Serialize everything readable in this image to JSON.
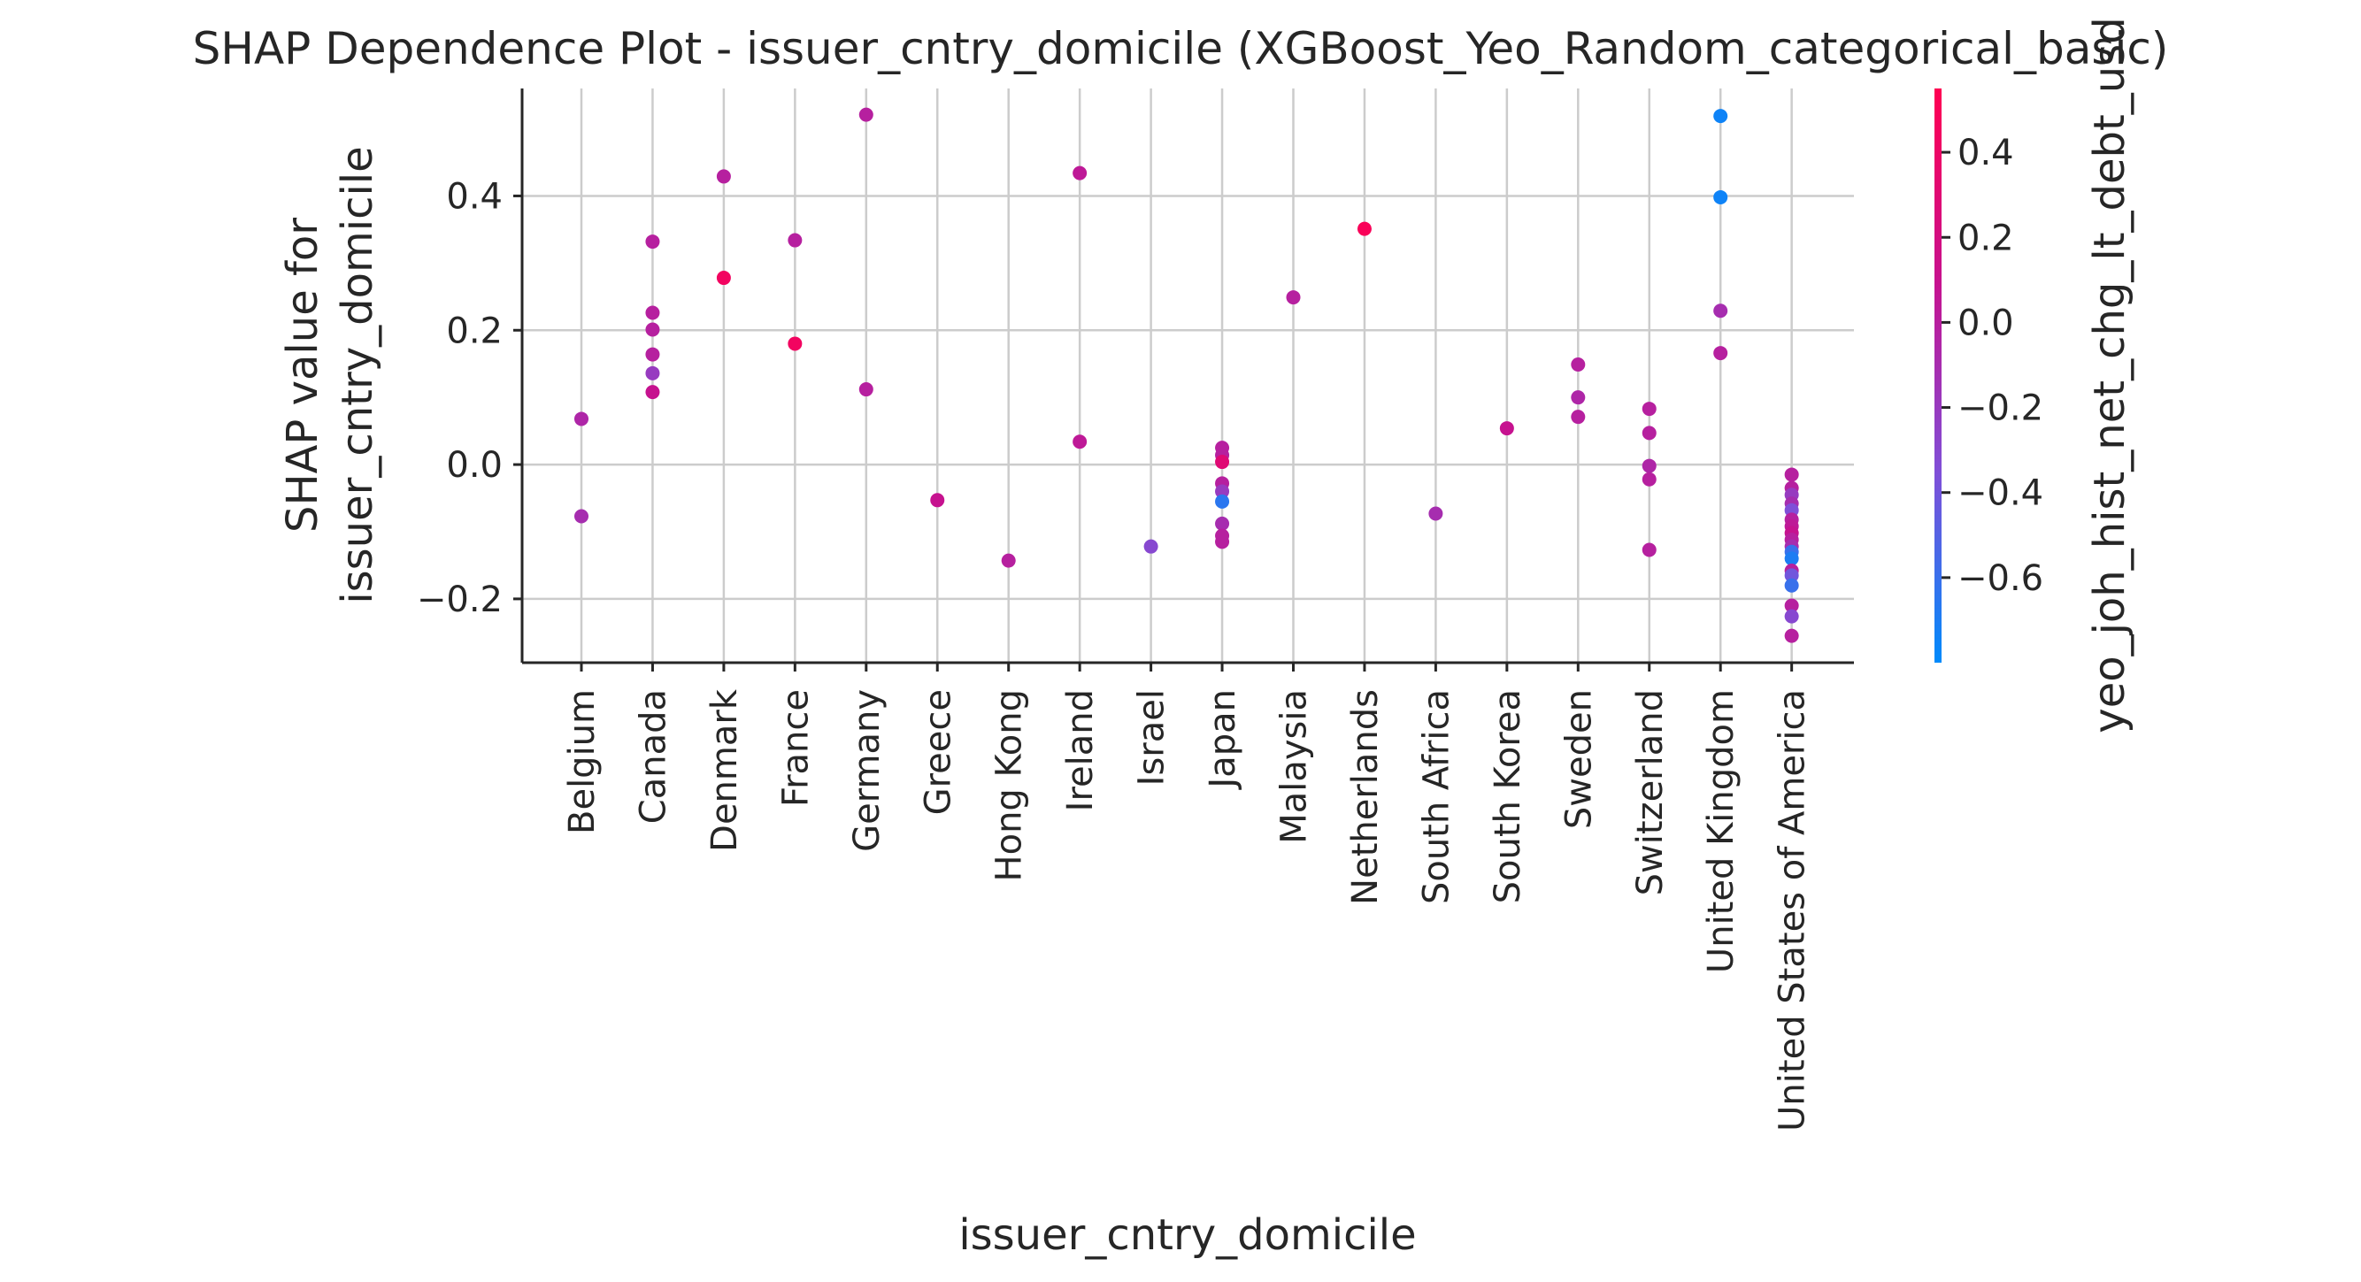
{
  "chart_data": {
    "type": "scatter",
    "title": "SHAP Dependence Plot - issuer_cntry_domicile (XGBoost_Yeo_Random_categorical_basic)",
    "xlabel": "issuer_cntry_domicile",
    "ylabel_lines": [
      "SHAP value for",
      "issuer_cntry_domicile"
    ],
    "colorbar_label": "yeo_joh_hist_net_chg_lt_debt_usd",
    "ylim": [
      -0.295,
      0.56
    ],
    "yticks": [
      -0.2,
      0.0,
      0.2,
      0.4
    ],
    "ytick_labels": [
      "−0.2",
      "0.0",
      "0.2",
      "0.4"
    ],
    "grid": true,
    "categories": [
      "Belgium",
      "Canada",
      "Denmark",
      "France",
      "Germany",
      "Greece",
      "Hong Kong",
      "Ireland",
      "Israel",
      "Japan",
      "Malaysia",
      "Netherlands",
      "South Africa",
      "South Korea",
      "Sweden",
      "Switzerland",
      "United Kingdom",
      "United States of America"
    ],
    "colorbar": {
      "range": [
        -0.8,
        0.55
      ],
      "ticks": [
        -0.6,
        -0.4,
        -0.2,
        0.0,
        0.2,
        0.4
      ],
      "tick_labels": [
        "−0.6",
        "−0.4",
        "−0.2",
        "0.0",
        "0.2",
        "0.4"
      ],
      "cmap": [
        "#008afb",
        "#7f4fd8",
        "#c6128f",
        "#ff0052"
      ]
    },
    "points": [
      {
        "x": "Belgium",
        "y": 0.068,
        "c": -0.05
      },
      {
        "x": "Belgium",
        "y": -0.077,
        "c": -0.1
      },
      {
        "x": "Canada",
        "y": 0.332,
        "c": 0.0
      },
      {
        "x": "Canada",
        "y": 0.226,
        "c": 0.0
      },
      {
        "x": "Canada",
        "y": 0.201,
        "c": 0.0
      },
      {
        "x": "Canada",
        "y": 0.164,
        "c": 0.0
      },
      {
        "x": "Canada",
        "y": 0.136,
        "c": -0.2
      },
      {
        "x": "Canada",
        "y": 0.108,
        "c": 0.1
      },
      {
        "x": "Denmark",
        "y": 0.429,
        "c": 0.0
      },
      {
        "x": "Denmark",
        "y": 0.278,
        "c": 0.45
      },
      {
        "x": "France",
        "y": 0.334,
        "c": 0.0
      },
      {
        "x": "France",
        "y": 0.18,
        "c": 0.45
      },
      {
        "x": "Germany",
        "y": 0.521,
        "c": 0.0
      },
      {
        "x": "Germany",
        "y": 0.112,
        "c": 0.0
      },
      {
        "x": "Greece",
        "y": -0.053,
        "c": 0.1
      },
      {
        "x": "Hong Kong",
        "y": -0.143,
        "c": 0.0
      },
      {
        "x": "Ireland",
        "y": 0.434,
        "c": 0.05
      },
      {
        "x": "Ireland",
        "y": 0.034,
        "c": 0.05
      },
      {
        "x": "Israel",
        "y": -0.122,
        "c": -0.3
      },
      {
        "x": "Japan",
        "y": 0.025,
        "c": 0.0
      },
      {
        "x": "Japan",
        "y": 0.014,
        "c": 0.0
      },
      {
        "x": "Japan",
        "y": 0.004,
        "c": 0.3
      },
      {
        "x": "Japan",
        "y": -0.028,
        "c": 0.0
      },
      {
        "x": "Japan",
        "y": -0.04,
        "c": -0.2
      },
      {
        "x": "Japan",
        "y": -0.055,
        "c": -0.65
      },
      {
        "x": "Japan",
        "y": -0.088,
        "c": -0.1
      },
      {
        "x": "Japan",
        "y": -0.106,
        "c": 0.0
      },
      {
        "x": "Japan",
        "y": -0.115,
        "c": 0.0
      },
      {
        "x": "Malaysia",
        "y": 0.249,
        "c": 0.0
      },
      {
        "x": "Netherlands",
        "y": 0.351,
        "c": 0.5
      },
      {
        "x": "South Africa",
        "y": -0.073,
        "c": -0.1
      },
      {
        "x": "South Korea",
        "y": 0.054,
        "c": 0.1
      },
      {
        "x": "Sweden",
        "y": 0.149,
        "c": 0.0
      },
      {
        "x": "Sweden",
        "y": 0.1,
        "c": -0.05
      },
      {
        "x": "Sweden",
        "y": 0.071,
        "c": 0.0
      },
      {
        "x": "Switzerland",
        "y": 0.083,
        "c": 0.0
      },
      {
        "x": "Switzerland",
        "y": 0.047,
        "c": 0.0
      },
      {
        "x": "Switzerland",
        "y": -0.002,
        "c": -0.05
      },
      {
        "x": "Switzerland",
        "y": -0.022,
        "c": 0.0
      },
      {
        "x": "Switzerland",
        "y": -0.127,
        "c": 0.0
      },
      {
        "x": "United Kingdom",
        "y": 0.519,
        "c": -0.75
      },
      {
        "x": "United Kingdom",
        "y": 0.398,
        "c": -0.75
      },
      {
        "x": "United Kingdom",
        "y": 0.229,
        "c": -0.1
      },
      {
        "x": "United Kingdom",
        "y": 0.166,
        "c": 0.0
      },
      {
        "x": "United States of America",
        "y": -0.015,
        "c": 0.0
      },
      {
        "x": "United States of America",
        "y": -0.035,
        "c": 0.0
      },
      {
        "x": "United States of America",
        "y": -0.045,
        "c": -0.2
      },
      {
        "x": "United States of America",
        "y": -0.058,
        "c": -0.1
      },
      {
        "x": "United States of America",
        "y": -0.068,
        "c": -0.35
      },
      {
        "x": "United States of America",
        "y": -0.082,
        "c": 0.0
      },
      {
        "x": "United States of America",
        "y": -0.092,
        "c": 0.05
      },
      {
        "x": "United States of America",
        "y": -0.102,
        "c": 0.1
      },
      {
        "x": "United States of America",
        "y": -0.112,
        "c": 0.0
      },
      {
        "x": "United States of America",
        "y": -0.122,
        "c": -0.1
      },
      {
        "x": "United States of America",
        "y": -0.13,
        "c": -0.6
      },
      {
        "x": "United States of America",
        "y": -0.14,
        "c": -0.7
      },
      {
        "x": "United States of America",
        "y": -0.158,
        "c": 0.0
      },
      {
        "x": "United States of America",
        "y": -0.165,
        "c": -0.4
      },
      {
        "x": "United States of America",
        "y": -0.18,
        "c": -0.6
      },
      {
        "x": "United States of America",
        "y": -0.21,
        "c": 0.0
      },
      {
        "x": "United States of America",
        "y": -0.226,
        "c": -0.3
      },
      {
        "x": "United States of America",
        "y": -0.255,
        "c": 0.0
      }
    ]
  }
}
